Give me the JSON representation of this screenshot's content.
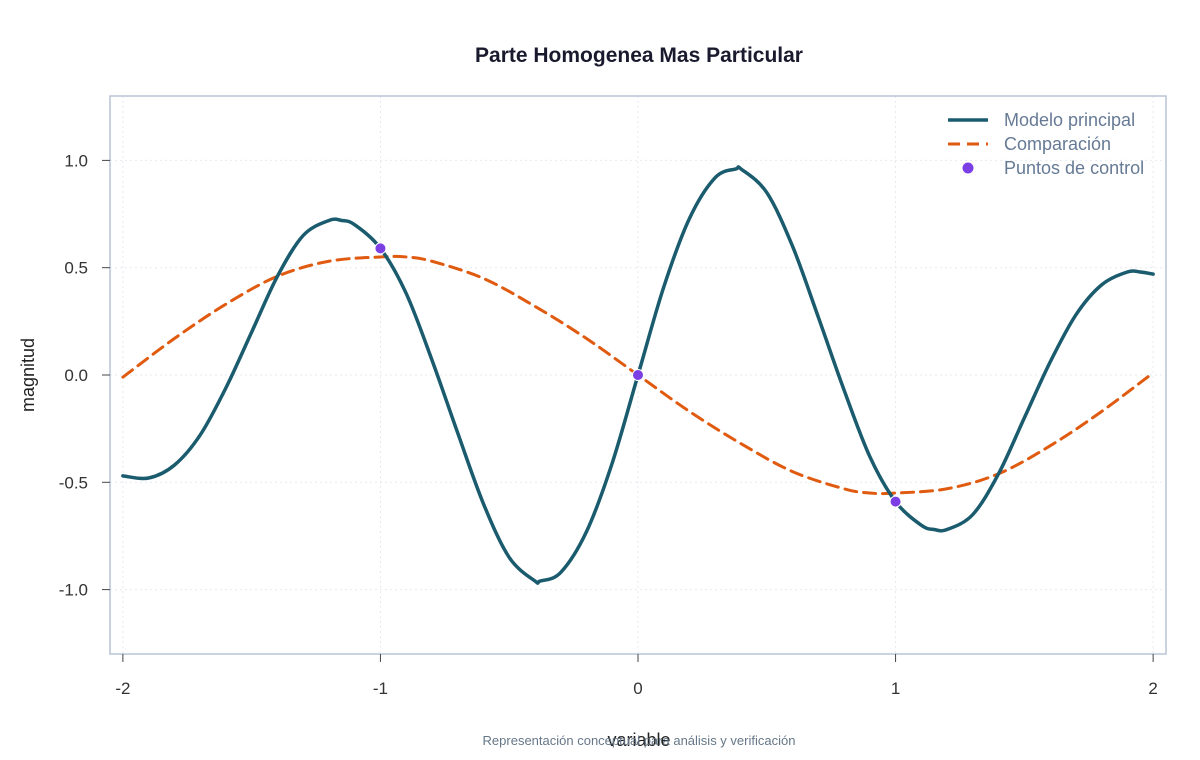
{
  "chart_data": {
    "type": "line",
    "title": "Parte Homogenea Mas Particular",
    "xlabel": "variable",
    "ylabel": "magnitud",
    "caption": "Representación conceptual para análisis y verificación",
    "xlim": [
      -2.05,
      2.05
    ],
    "ylim": [
      -1.3,
      1.3
    ],
    "x_ticks": [
      -2,
      -1,
      0,
      1,
      2
    ],
    "x_tick_labels": [
      "-2",
      "-1",
      "0",
      "1",
      "2"
    ],
    "y_ticks": [
      -1.0,
      -0.5,
      0.0,
      0.5,
      1.0
    ],
    "y_tick_labels": [
      "-1.0",
      "-0.5",
      "0.0",
      "0.5",
      "1.0"
    ],
    "grid": true,
    "legend_position": "top-right",
    "series": [
      {
        "name": "Modelo principal",
        "style": "solid",
        "color": "#1a5b6e",
        "x": [
          -2.0,
          -1.9,
          -1.8,
          -1.7,
          -1.6,
          -1.5,
          -1.4,
          -1.3,
          -1.2,
          -1.15,
          -1.1,
          -1.0,
          -0.9,
          -0.8,
          -0.7,
          -0.6,
          -0.5,
          -0.4,
          -0.38,
          -0.3,
          -0.2,
          -0.1,
          0.0,
          0.1,
          0.2,
          0.3,
          0.38,
          0.4,
          0.5,
          0.6,
          0.7,
          0.8,
          0.9,
          1.0,
          1.1,
          1.15,
          1.2,
          1.3,
          1.4,
          1.5,
          1.6,
          1.7,
          1.8,
          1.9,
          1.95,
          2.0
        ],
        "y": [
          -0.47,
          -0.48,
          -0.42,
          -0.28,
          -0.06,
          0.2,
          0.46,
          0.65,
          0.72,
          0.72,
          0.7,
          0.59,
          0.38,
          0.07,
          -0.27,
          -0.6,
          -0.85,
          -0.96,
          -0.96,
          -0.92,
          -0.73,
          -0.41,
          0.0,
          0.41,
          0.73,
          0.92,
          0.96,
          0.96,
          0.85,
          0.6,
          0.27,
          -0.07,
          -0.38,
          -0.59,
          -0.7,
          -0.72,
          -0.72,
          -0.65,
          -0.46,
          -0.2,
          0.06,
          0.28,
          0.42,
          0.48,
          0.48,
          0.47
        ]
      },
      {
        "name": "Comparación",
        "style": "dashed",
        "color": "#e05a10",
        "x": [
          -2.0,
          -1.8,
          -1.6,
          -1.4,
          -1.2,
          -1.0,
          -0.9,
          -0.8,
          -0.6,
          -0.4,
          -0.2,
          0.0,
          0.2,
          0.4,
          0.6,
          0.8,
          0.9,
          1.0,
          1.2,
          1.4,
          1.6,
          1.8,
          2.0
        ],
        "y": [
          -0.01,
          0.17,
          0.33,
          0.46,
          0.53,
          0.55,
          0.55,
          0.53,
          0.45,
          0.32,
          0.17,
          0.0,
          -0.17,
          -0.32,
          -0.45,
          -0.53,
          -0.55,
          -0.55,
          -0.53,
          -0.46,
          -0.33,
          -0.17,
          0.01
        ]
      },
      {
        "name": "Puntos de control",
        "style": "points",
        "color": "#7b3fe4",
        "x": [
          -1.0,
          0.0,
          1.0
        ],
        "y": [
          0.59,
          0.0,
          -0.59
        ]
      }
    ]
  }
}
